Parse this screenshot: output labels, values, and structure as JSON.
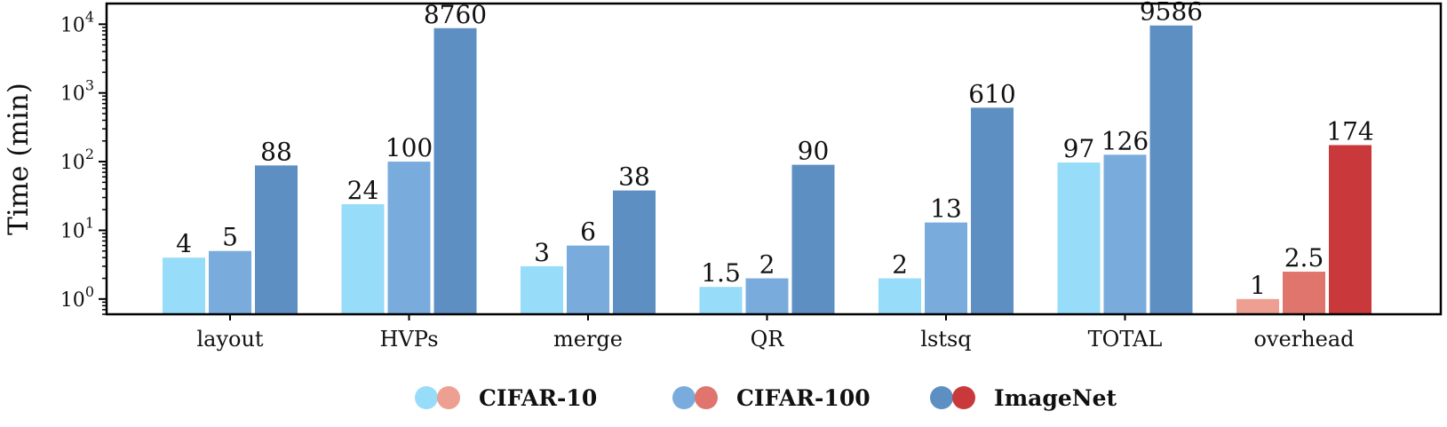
{
  "chart_data": {
    "type": "bar",
    "categories": [
      "layout",
      "HVPs",
      "merge",
      "QR",
      "lstsq",
      "TOTAL",
      "overhead"
    ],
    "series": [
      {
        "name": "CIFAR-10",
        "values": [
          4,
          24,
          3,
          1.5,
          2,
          97,
          1
        ],
        "labels": [
          "4",
          "24",
          "3",
          "1.5",
          "2",
          "97",
          "1"
        ]
      },
      {
        "name": "CIFAR-100",
        "values": [
          5,
          100,
          6,
          2,
          13,
          126,
          2.5
        ],
        "labels": [
          "5",
          "100",
          "6",
          "2",
          "13",
          "126",
          "2.5"
        ]
      },
      {
        "name": "ImageNet",
        "values": [
          88,
          8760,
          38,
          90,
          610,
          9586,
          174
        ],
        "labels": [
          "88",
          "8760",
          "38",
          "90",
          "610",
          "9586",
          "174"
        ]
      }
    ],
    "ylabel": "Time (min)",
    "xlabel": "",
    "yscale": "log",
    "ylim": [
      0.6,
      20000
    ],
    "yticks": [
      {
        "value": 1,
        "base": "10",
        "exp": "0"
      },
      {
        "value": 10,
        "base": "10",
        "exp": "1"
      },
      {
        "value": 100,
        "base": "10",
        "exp": "2"
      },
      {
        "value": 1000,
        "base": "10",
        "exp": "3"
      },
      {
        "value": 10000,
        "base": "10",
        "exp": "4"
      }
    ],
    "colors": {
      "blue": [
        "#97dcf9",
        "#79acdd",
        "#5e8fc3"
      ],
      "red": [
        "#eda092",
        "#df756c",
        "#c9393b"
      ]
    },
    "highlight_category": "overhead",
    "grid": false,
    "legend_position": "bottom-center"
  }
}
